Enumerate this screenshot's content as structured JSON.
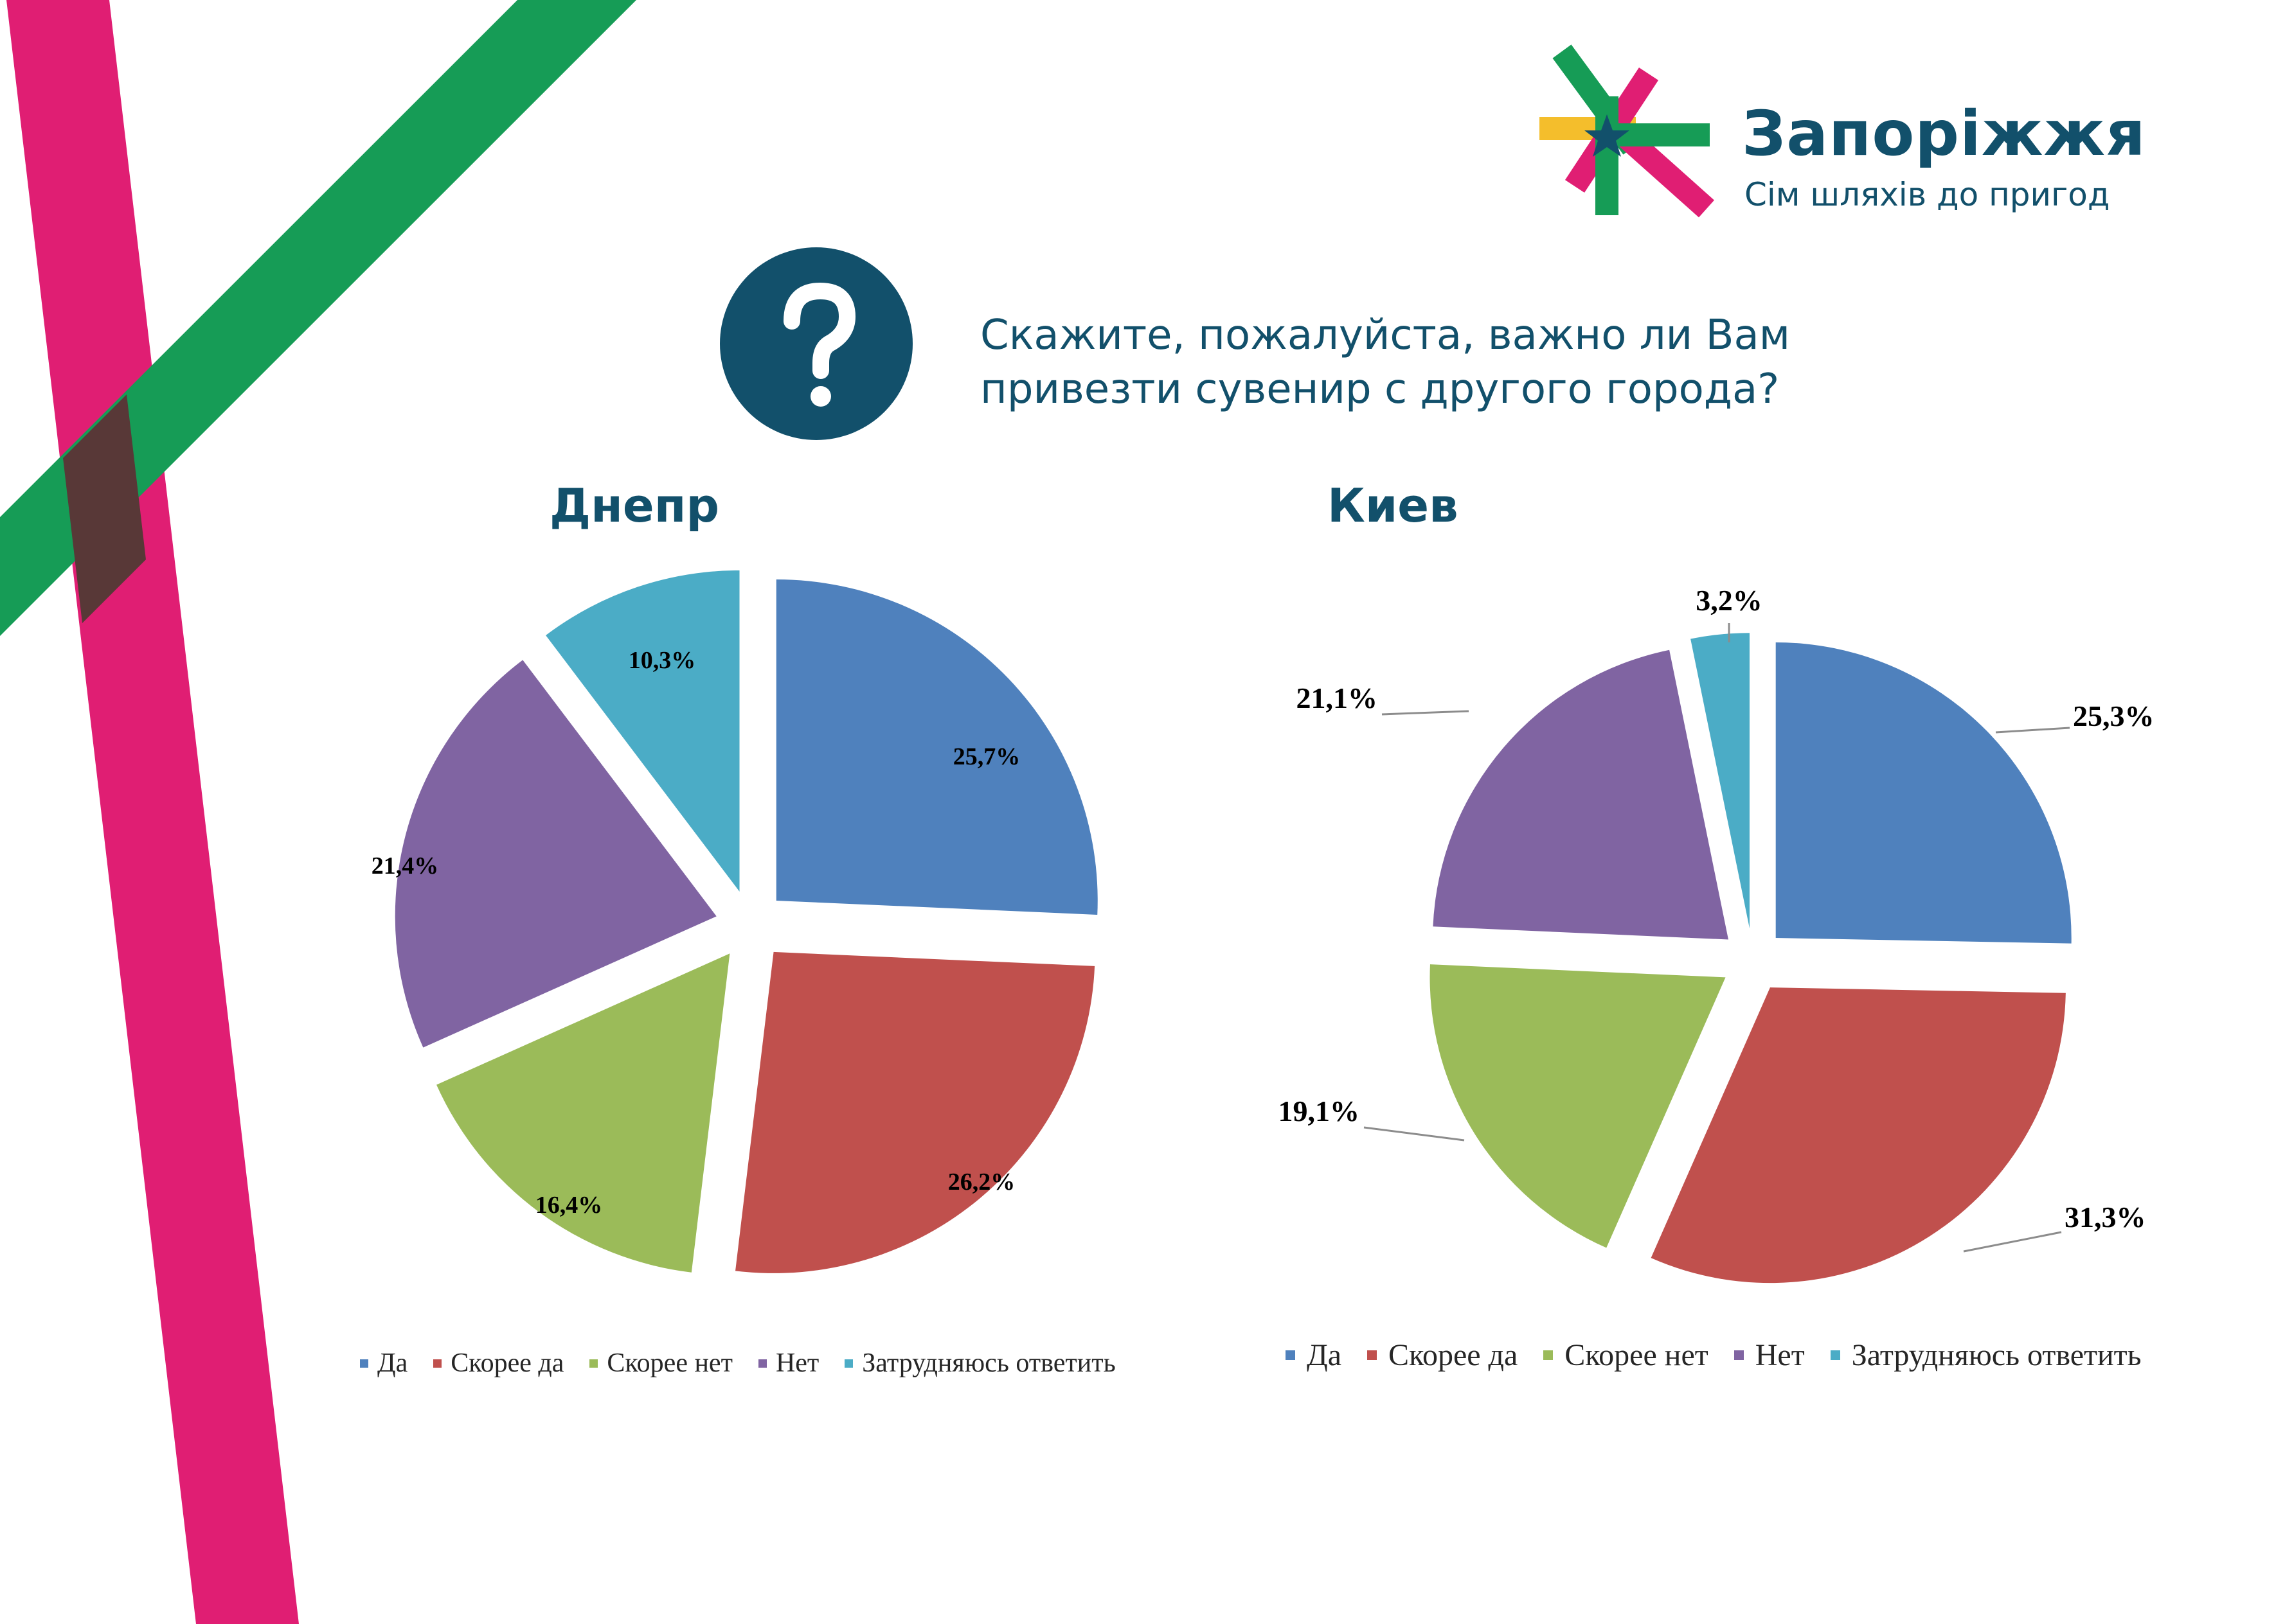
{
  "brand": {
    "name": "Запоріжжя",
    "tagline": "Сім шляхів до пригод",
    "colors": {
      "navy": "#12506b",
      "pink": "#e01e73",
      "green": "#169c56",
      "yellow": "#f4be2c",
      "overlap": "#583837"
    }
  },
  "question": {
    "icon": "question-mark-icon",
    "line1": "Скажите, пожалуйста, важно ли Вам",
    "line2": "привезти сувенир с другого города?"
  },
  "legend_items": [
    {
      "label": "Да",
      "color": "#4f81bd"
    },
    {
      "label": "Скорее да",
      "color": "#c0504d"
    },
    {
      "label": "Скорее нет",
      "color": "#9bbb59"
    },
    {
      "label": "Нет",
      "color": "#8064a2"
    },
    {
      "label": "Затрудняюсь ответить",
      "color": "#4bacc6"
    }
  ],
  "chart_data": [
    {
      "type": "pie",
      "title": "Днепр",
      "legend": "bottom",
      "categories": [
        "Да",
        "Скорее да",
        "Скорее нет",
        "Нет",
        "Затрудняюсь ответить"
      ],
      "values": [
        25.7,
        26.2,
        16.4,
        21.4,
        10.3
      ],
      "labels": [
        "25,7%",
        "26,2%",
        "16,4%",
        "21,4%",
        "10,3%"
      ],
      "colors": [
        "#4f81bd",
        "#c0504d",
        "#9bbb59",
        "#8064a2",
        "#4bacc6"
      ],
      "exploded": true,
      "label_position": "inside"
    },
    {
      "type": "pie",
      "title": "Киев",
      "legend": "bottom",
      "categories": [
        "Да",
        "Скорее да",
        "Скорее нет",
        "Нет",
        "Затрудняюсь ответить"
      ],
      "values": [
        25.3,
        31.3,
        19.1,
        21.1,
        3.2
      ],
      "labels": [
        "25,3%",
        "31,3%",
        "19,1%",
        "21,1%",
        "3,2%"
      ],
      "colors": [
        "#4f81bd",
        "#c0504d",
        "#9bbb59",
        "#8064a2",
        "#4bacc6"
      ],
      "exploded": true,
      "label_position": "outside-with-leader-lines"
    }
  ]
}
